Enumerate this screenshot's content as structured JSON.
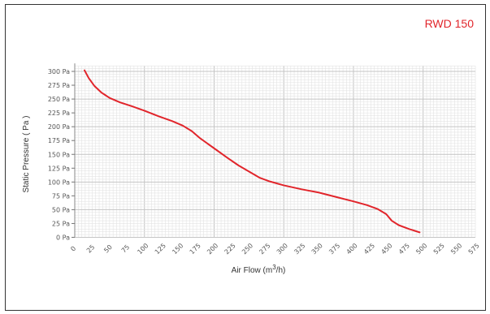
{
  "header": {
    "model": "RWD 150"
  },
  "colors": {
    "curve": "#e1252b",
    "minor_grid": "#e3e3e3",
    "major_grid": "#c4c4c4",
    "tick_text": "#555555"
  },
  "chart_data": {
    "type": "line",
    "title": "",
    "xlabel": "Air Flow (m3/h)",
    "xlabel_parts": {
      "pre": "Air Flow (m",
      "sup": "3",
      "post": "/h)"
    },
    "ylabel": "Static Pressure ( Pa )",
    "xlim": [
      0,
      575
    ],
    "ylim": [
      0,
      310
    ],
    "x_ticks": [
      0,
      25,
      50,
      75,
      100,
      125,
      150,
      175,
      200,
      225,
      250,
      275,
      300,
      325,
      350,
      375,
      400,
      425,
      450,
      475,
      500,
      525,
      550,
      575
    ],
    "x_tick_labels": [
      "0",
      "25",
      "50",
      "75",
      "100",
      "125",
      "150",
      "175",
      "200",
      "225",
      "250",
      "275",
      "300",
      "325",
      "350",
      "375",
      "400",
      "425",
      "450",
      "475",
      "500",
      "525",
      "550",
      "575"
    ],
    "y_ticks": [
      0,
      25,
      50,
      75,
      100,
      125,
      150,
      175,
      200,
      225,
      250,
      275,
      300
    ],
    "y_tick_labels": [
      "0 Pa",
      "25 Pa",
      "50 Pa",
      "75 Pa",
      "100 Pa",
      "125 Pa",
      "150 Pa",
      "175 Pa",
      "200 Pa",
      "225 Pa",
      "250 Pa",
      "275 Pa",
      "300 Pa"
    ],
    "grid": true,
    "series": [
      {
        "color": "#e1252b",
        "x": [
          14,
          20,
          28,
          38,
          50,
          65,
          82,
          100,
          120,
          140,
          155,
          168,
          180,
          200,
          220,
          235,
          250,
          265,
          280,
          300,
          325,
          350,
          375,
          400,
          420,
          435,
          447,
          455,
          465,
          480,
          495
        ],
        "y": [
          302,
          288,
          274,
          262,
          252,
          244,
          237,
          229,
          219,
          210,
          202,
          192,
          179,
          161,
          143,
          130,
          119,
          108,
          101,
          94,
          87,
          81,
          73,
          65,
          58,
          51,
          42,
          30,
          22,
          15,
          9
        ]
      }
    ]
  }
}
